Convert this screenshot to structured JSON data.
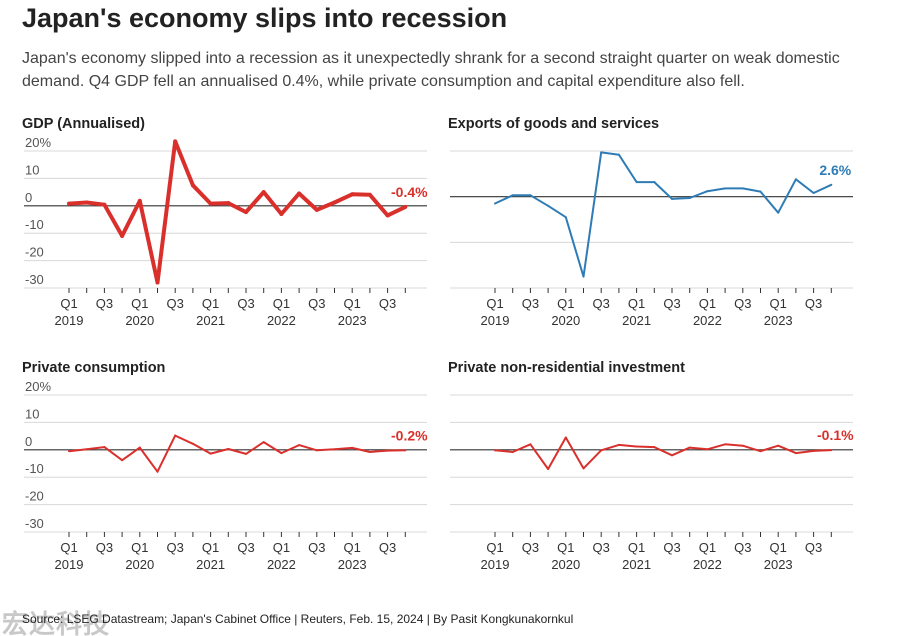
{
  "title": "Japan's economy slips into recession",
  "subtitle": "Japan's economy slipped into a recession as it unexpectedly shrank for a second straight quarter on weak domestic demand. Q4 GDP fell an annualised 0.4%, while private consumption and capital expenditure also fell.",
  "source": "Source: LSEG Datastream; Japan's Cabinet Office | Reuters, Feb. 15, 2024 | By Pasit Kongkunakornkul",
  "watermark": "宏达科技",
  "chart_data": [
    {
      "type": "line",
      "title": "GDP (Annualised)",
      "color": "#d9302c",
      "thick": true,
      "ylim": [
        -30,
        20
      ],
      "yticks": [
        "20%",
        "10",
        "0",
        "-10",
        "-20",
        "-30"
      ],
      "tick_values": [
        20,
        10,
        0,
        -10,
        -20,
        -30
      ],
      "x_quarter_labels": [
        "Q1",
        "Q3",
        "Q1",
        "Q3",
        "Q1",
        "Q3",
        "Q1",
        "Q3",
        "Q1",
        "Q3"
      ],
      "x_year_labels": [
        "2019",
        "2020",
        "2021",
        "2022",
        "2023"
      ],
      "end_label": "-0.4%",
      "x": [
        "2019 Q1",
        "2019 Q2",
        "2019 Q3",
        "2019 Q4",
        "2020 Q1",
        "2020 Q2",
        "2020 Q3",
        "2020 Q4",
        "2021 Q1",
        "2021 Q2",
        "2021 Q3",
        "2021 Q4",
        "2022 Q1",
        "2022 Q2",
        "2022 Q3",
        "2022 Q4",
        "2023 Q1",
        "2023 Q2",
        "2023 Q3",
        "2023 Q4"
      ],
      "values": [
        0.8,
        1.2,
        0.4,
        -11.0,
        1.8,
        -28.0,
        23.5,
        7.5,
        0.8,
        1.0,
        -2.3,
        5.0,
        -3.0,
        4.5,
        -1.5,
        1.2,
        4.2,
        4.0,
        -3.5,
        -0.4
      ]
    },
    {
      "type": "line",
      "title": "Exports of goods and services",
      "color": "#2e7cb6",
      "thick": false,
      "ylim": [
        -20,
        10
      ],
      "yticks": [],
      "tick_values": [
        10,
        0,
        -10,
        -20
      ],
      "x_quarter_labels": [
        "Q1",
        "Q3",
        "Q1",
        "Q3",
        "Q1",
        "Q3",
        "Q1",
        "Q3",
        "Q1",
        "Q3"
      ],
      "x_year_labels": [
        "2019",
        "2020",
        "2021",
        "2022",
        "2023"
      ],
      "end_label": "2.6%",
      "x": [
        "2019 Q1",
        "2019 Q2",
        "2019 Q3",
        "2019 Q4",
        "2020 Q1",
        "2020 Q2",
        "2020 Q3",
        "2020 Q4",
        "2021 Q1",
        "2021 Q2",
        "2021 Q3",
        "2021 Q4",
        "2022 Q1",
        "2022 Q2",
        "2022 Q3",
        "2022 Q4",
        "2023 Q1",
        "2023 Q2",
        "2023 Q3",
        "2023 Q4"
      ],
      "values": [
        -1.5,
        0.3,
        0.3,
        -2.0,
        -4.5,
        -17.5,
        9.7,
        9.2,
        3.2,
        3.2,
        -0.5,
        -0.3,
        1.2,
        1.8,
        1.8,
        1.1,
        -3.5,
        3.8,
        0.8,
        2.6
      ]
    },
    {
      "type": "line",
      "title": "Private consumption",
      "color": "#d9302c",
      "thick": false,
      "ylim": [
        -30,
        20
      ],
      "yticks": [
        "20%",
        "10",
        "0",
        "-10",
        "-20",
        "-30"
      ],
      "tick_values": [
        20,
        10,
        0,
        -10,
        -20,
        -30
      ],
      "x_quarter_labels": [
        "Q1",
        "Q3",
        "Q1",
        "Q3",
        "Q1",
        "Q3",
        "Q1",
        "Q3",
        "Q1",
        "Q3"
      ],
      "x_year_labels": [
        "2019",
        "2020",
        "2021",
        "2022",
        "2023"
      ],
      "end_label": "-0.2%",
      "x": [
        "2019 Q1",
        "2019 Q2",
        "2019 Q3",
        "2019 Q4",
        "2020 Q1",
        "2020 Q2",
        "2020 Q3",
        "2020 Q4",
        "2021 Q1",
        "2021 Q2",
        "2021 Q3",
        "2021 Q4",
        "2022 Q1",
        "2022 Q2",
        "2022 Q3",
        "2022 Q4",
        "2023 Q1",
        "2023 Q2",
        "2023 Q3",
        "2023 Q4"
      ],
      "values": [
        -0.5,
        0.2,
        1.0,
        -3.8,
        0.8,
        -8.0,
        5.2,
        2.2,
        -1.4,
        0.3,
        -1.5,
        2.8,
        -1.2,
        1.7,
        -0.2,
        0.2,
        0.7,
        -0.8,
        -0.3,
        -0.2
      ]
    },
    {
      "type": "line",
      "title": "Private non-residential investment",
      "color": "#d9302c",
      "thick": false,
      "ylim": [
        -30,
        20
      ],
      "yticks": [],
      "tick_values": [
        20,
        10,
        0,
        -10,
        -20,
        -30
      ],
      "x_quarter_labels": [
        "Q1",
        "Q3",
        "Q1",
        "Q3",
        "Q1",
        "Q3",
        "Q1",
        "Q3",
        "Q1",
        "Q3"
      ],
      "x_year_labels": [
        "2019",
        "2020",
        "2021",
        "2022",
        "2023"
      ],
      "end_label": "-0.1%",
      "x": [
        "2019 Q1",
        "2019 Q2",
        "2019 Q3",
        "2019 Q4",
        "2020 Q1",
        "2020 Q2",
        "2020 Q3",
        "2020 Q4",
        "2021 Q1",
        "2021 Q2",
        "2021 Q3",
        "2021 Q4",
        "2022 Q1",
        "2022 Q2",
        "2022 Q3",
        "2022 Q4",
        "2023 Q1",
        "2023 Q2",
        "2023 Q3",
        "2023 Q4"
      ],
      "values": [
        -0.2,
        -0.8,
        2.0,
        -7.0,
        4.5,
        -6.8,
        -0.2,
        1.8,
        1.2,
        1.0,
        -2.0,
        0.8,
        0.2,
        2.0,
        1.5,
        -0.5,
        1.5,
        -1.2,
        -0.4,
        -0.1
      ]
    }
  ]
}
